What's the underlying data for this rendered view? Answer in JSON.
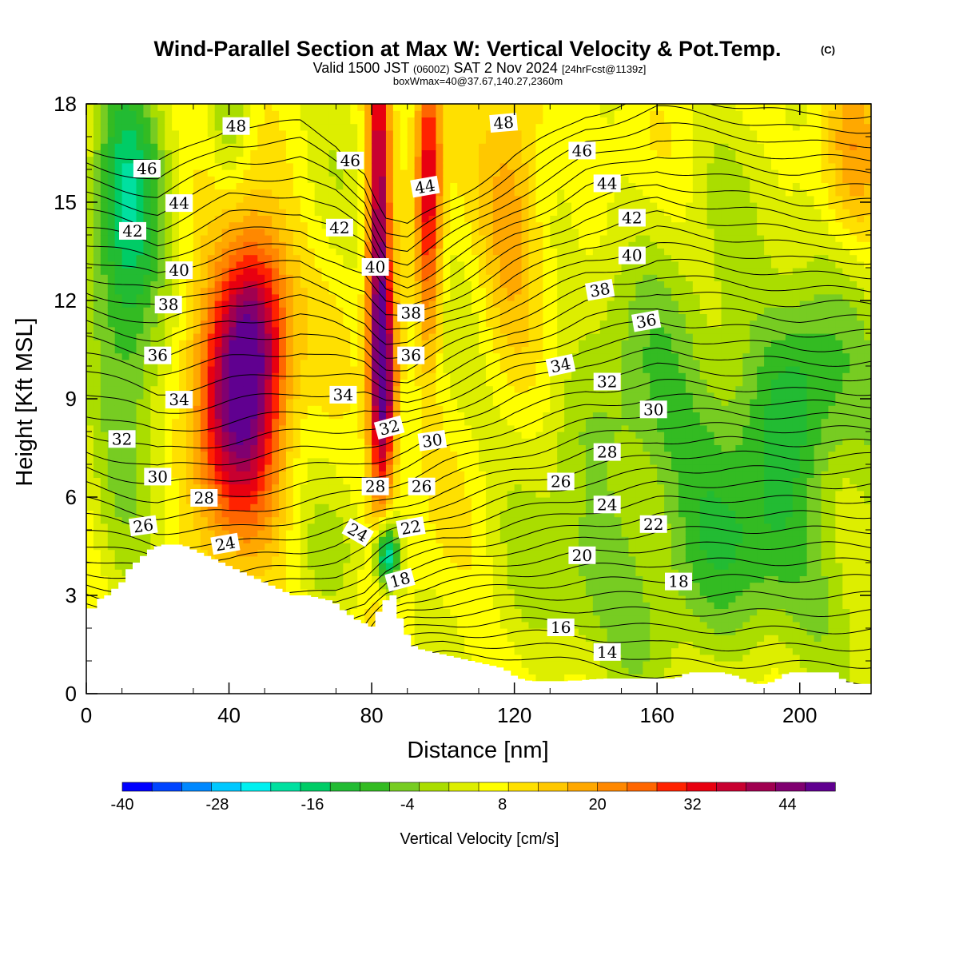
{
  "chart_data": {
    "type": "heatmap",
    "title": "Wind-Parallel Section at Max W: Vertical Velocity & Pot.Temp.",
    "title_badge": "(C)",
    "subtitle_line1_parts": [
      "Valid 1500 JST ",
      "(0600Z)",
      " SAT 2 Nov 2024 ",
      "[24hrFcst@1139z]"
    ],
    "subtitle_line2": "boxWmax=40@37.67,140.27,2360m",
    "xlabel": "Distance [nm]",
    "ylabel": "Height [Kft MSL]",
    "xlim": [
      0,
      220
    ],
    "ylim": [
      0,
      18
    ],
    "x_ticks": [
      0,
      40,
      80,
      120,
      160,
      200
    ],
    "x_tick_labels": [
      "0",
      "40",
      "80",
      "120",
      "160",
      "200"
    ],
    "y_ticks": [
      0,
      3,
      6,
      9,
      12,
      15,
      18
    ],
    "y_tick_labels": [
      "0",
      "3",
      "6",
      "9",
      "12",
      "15",
      "18"
    ],
    "colorbar": {
      "title": "Vertical Velocity [cm/s]",
      "range": [
        -40,
        50
      ],
      "tick_values": [
        -40,
        -28,
        -16,
        -4,
        8,
        20,
        32,
        44
      ],
      "tick_labels": [
        "-40",
        "-28",
        "-16",
        "-4",
        "8",
        "20",
        "32",
        "44"
      ],
      "colors": [
        "#0000ff",
        "#0044ff",
        "#0088ff",
        "#00c8ff",
        "#00f0f0",
        "#00e0a0",
        "#00cc66",
        "#22bb33",
        "#33bb22",
        "#77cc22",
        "#aadd00",
        "#ddee00",
        "#ffff00",
        "#ffe000",
        "#ffc800",
        "#ffa800",
        "#ff8800",
        "#ff6600",
        "#ff2200",
        "#e80010",
        "#c80030",
        "#a00050",
        "#800070",
        "#600090"
      ]
    },
    "w_features": [
      {
        "x": 12,
        "z": 12.0,
        "w": -18,
        "sx": 10,
        "sz": 5.5
      },
      {
        "x": 10,
        "z": 16.0,
        "w": -10,
        "sx": 9,
        "sz": 3.5
      },
      {
        "x": 42,
        "z": 8.8,
        "w": 38,
        "sx": 12,
        "sz": 3.8
      },
      {
        "x": 48,
        "z": 11.5,
        "w": 24,
        "sx": 9,
        "sz": 3
      },
      {
        "x": 82,
        "z": 14.0,
        "w": 36,
        "sx": 3.2,
        "sz": 8
      },
      {
        "x": 84,
        "z": 9.5,
        "w": 28,
        "sx": 3.5,
        "sz": 3
      },
      {
        "x": 96,
        "z": 15.5,
        "w": 28,
        "sx": 3.5,
        "sz": 5
      },
      {
        "x": 84,
        "z": 4.2,
        "w": -32,
        "sx": 3.5,
        "sz": 1.1
      },
      {
        "x": 120,
        "z": 15.0,
        "w": 14,
        "sx": 9,
        "sz": 4
      },
      {
        "x": 170,
        "z": 8.0,
        "w": -6,
        "sx": 30,
        "sz": 6
      },
      {
        "x": 200,
        "z": 9.5,
        "w": -10,
        "sx": 12,
        "sz": 3
      },
      {
        "x": 190,
        "z": 4.0,
        "w": -8,
        "sx": 25,
        "sz": 3
      },
      {
        "x": 140,
        "z": 3.0,
        "w": -6,
        "sx": 20,
        "sz": 2.5
      },
      {
        "x": 40,
        "z": 17.5,
        "w": -8,
        "sx": 5,
        "sz": 2
      },
      {
        "x": 68,
        "z": 4.2,
        "w": -4,
        "sx": 8,
        "sz": 1.5
      },
      {
        "x": 215,
        "z": 16.5,
        "w": 10,
        "sx": 8,
        "sz": 3
      }
    ],
    "terrain": {
      "x": [
        0,
        3,
        5,
        7,
        9,
        11,
        13,
        15,
        17,
        19,
        21,
        23,
        25,
        27,
        29,
        31,
        33,
        35,
        37,
        39,
        41,
        43,
        45,
        47,
        49,
        51,
        53,
        55,
        57,
        59,
        61,
        63,
        65,
        67,
        69,
        71,
        73,
        75,
        77,
        79,
        81,
        83,
        85,
        87,
        89,
        91,
        93,
        95,
        97,
        99,
        101,
        103,
        105,
        107,
        109,
        111,
        113,
        115,
        117,
        119,
        121,
        123,
        125,
        127,
        129,
        131,
        133,
        135,
        137,
        139,
        141,
        143,
        145,
        147,
        149,
        151,
        153,
        155,
        157,
        159,
        161,
        163,
        165,
        167,
        169,
        171,
        173,
        175,
        177,
        179,
        181,
        183,
        185,
        187,
        189,
        191,
        193,
        195,
        197,
        199,
        201,
        203,
        205,
        207,
        209,
        211,
        213,
        215,
        217,
        220
      ],
      "z": [
        2.6,
        2.9,
        3.0,
        3.2,
        3.4,
        3.8,
        4.0,
        4.2,
        4.4,
        4.5,
        4.55,
        4.55,
        4.55,
        4.5,
        4.4,
        4.3,
        4.2,
        4.1,
        4.0,
        3.9,
        3.8,
        3.7,
        3.6,
        3.5,
        3.4,
        3.3,
        3.2,
        3.1,
        3.0,
        3.0,
        3.0,
        2.95,
        2.9,
        2.85,
        2.75,
        2.55,
        2.4,
        2.25,
        2.15,
        2.05,
        2.5,
        2.85,
        3.0,
        2.3,
        1.8,
        1.45,
        1.35,
        1.3,
        1.25,
        1.2,
        1.15,
        1.1,
        1.05,
        1.0,
        0.95,
        0.9,
        0.85,
        0.8,
        0.7,
        0.55,
        0.45,
        0.4,
        0.38,
        0.38,
        0.38,
        0.38,
        0.38,
        0.4,
        0.4,
        0.42,
        0.44,
        0.45,
        0.46,
        0.46,
        0.46,
        0.46,
        0.46,
        0.46,
        0.46,
        0.46,
        0.46,
        0.46,
        0.5,
        0.6,
        0.65,
        0.65,
        0.65,
        0.65,
        0.65,
        0.6,
        0.55,
        0.45,
        0.35,
        0.3,
        0.3,
        0.35,
        0.45,
        0.6,
        0.65,
        0.65,
        0.65,
        0.65,
        0.65,
        0.65,
        0.65,
        0.45,
        0.35,
        0.3,
        0.3,
        0.3
      ]
    },
    "isentropes": {
      "theta_values": [
        12,
        13,
        14,
        15,
        16,
        17,
        18,
        19,
        20,
        21,
        22,
        23,
        24,
        25,
        26,
        27,
        28,
        29,
        30,
        31,
        32,
        33,
        34,
        35,
        36,
        37,
        38,
        39,
        40,
        41,
        42,
        43,
        44,
        45,
        46,
        47,
        48,
        49,
        50
      ],
      "x_nodes": [
        0,
        20,
        40,
        60,
        70,
        78,
        84,
        90,
        100,
        120,
        140,
        160,
        180,
        200,
        220
      ],
      "theta_at_3kft": [
        22,
        23,
        23.5,
        23,
        22.5,
        21.5,
        19.5,
        18.5,
        17.8,
        17.2,
        17,
        17,
        17,
        17,
        17
      ],
      "lapse_low": [
        2.8,
        2.8,
        2.4,
        2.3,
        2.3,
        2.5,
        3.2,
        3.4,
        3.2,
        2.8,
        2.4,
        2.0,
        1.9,
        1.9,
        1.9
      ],
      "lapse_high": [
        1.3,
        1.3,
        1.3,
        1.45,
        1.7,
        1.9,
        2.1,
        2.2,
        2.2,
        2.1,
        2.1,
        2.3,
        2.5,
        2.6,
        2.6
      ]
    },
    "contour_labels": [
      {
        "text": "48",
        "x": 42,
        "z": 17.3,
        "angle": 0
      },
      {
        "text": "46",
        "x": 17,
        "z": 16.0,
        "angle": 0
      },
      {
        "text": "44",
        "x": 26,
        "z": 14.95,
        "angle": 0
      },
      {
        "text": "42",
        "x": 13,
        "z": 14.1,
        "angle": 0
      },
      {
        "text": "40",
        "x": 26,
        "z": 12.9,
        "angle": 0
      },
      {
        "text": "38",
        "x": 23,
        "z": 11.85,
        "angle": 0
      },
      {
        "text": "36",
        "x": 20,
        "z": 10.3,
        "angle": 0
      },
      {
        "text": "34",
        "x": 26,
        "z": 8.95,
        "angle": 0
      },
      {
        "text": "32",
        "x": 10,
        "z": 7.75,
        "angle": 0
      },
      {
        "text": "30",
        "x": 20,
        "z": 6.6,
        "angle": 0
      },
      {
        "text": "28",
        "x": 33,
        "z": 5.95,
        "angle": 0
      },
      {
        "text": "26",
        "x": 16,
        "z": 5.1,
        "angle": -8
      },
      {
        "text": "24",
        "x": 39,
        "z": 4.55,
        "angle": -10
      },
      {
        "text": "46",
        "x": 74,
        "z": 16.25,
        "angle": 0
      },
      {
        "text": "42",
        "x": 71,
        "z": 14.2,
        "angle": 0
      },
      {
        "text": "40",
        "x": 81,
        "z": 13.0,
        "angle": 0
      },
      {
        "text": "34",
        "x": 72,
        "z": 9.1,
        "angle": 0
      },
      {
        "text": "32",
        "x": 85,
        "z": 8.1,
        "angle": -15
      },
      {
        "text": "28",
        "x": 81,
        "z": 6.3,
        "angle": 0
      },
      {
        "text": "24",
        "x": 76,
        "z": 4.9,
        "angle": 30
      },
      {
        "text": "44",
        "x": 95,
        "z": 15.45,
        "angle": -10
      },
      {
        "text": "38",
        "x": 91,
        "z": 11.6,
        "angle": 0
      },
      {
        "text": "36",
        "x": 91,
        "z": 10.3,
        "angle": 0
      },
      {
        "text": "30",
        "x": 97,
        "z": 7.7,
        "angle": -8
      },
      {
        "text": "26",
        "x": 94,
        "z": 6.3,
        "angle": 0
      },
      {
        "text": "22",
        "x": 91,
        "z": 5.05,
        "angle": -10
      },
      {
        "text": "18",
        "x": 88,
        "z": 3.45,
        "angle": -15
      },
      {
        "text": "48",
        "x": 117,
        "z": 17.4,
        "angle": -5
      },
      {
        "text": "46",
        "x": 139,
        "z": 16.55,
        "angle": 0
      },
      {
        "text": "44",
        "x": 146,
        "z": 15.55,
        "angle": 0
      },
      {
        "text": "42",
        "x": 153,
        "z": 14.5,
        "angle": 0
      },
      {
        "text": "40",
        "x": 153,
        "z": 13.35,
        "angle": 0
      },
      {
        "text": "38",
        "x": 144,
        "z": 12.3,
        "angle": -10
      },
      {
        "text": "36",
        "x": 157,
        "z": 11.35,
        "angle": -10
      },
      {
        "text": "34",
        "x": 133,
        "z": 10.0,
        "angle": -12
      },
      {
        "text": "32",
        "x": 146,
        "z": 9.5,
        "angle": 0
      },
      {
        "text": "30",
        "x": 159,
        "z": 8.65,
        "angle": 0
      },
      {
        "text": "28",
        "x": 146,
        "z": 7.35,
        "angle": 0
      },
      {
        "text": "26",
        "x": 133,
        "z": 6.45,
        "angle": 0
      },
      {
        "text": "24",
        "x": 146,
        "z": 5.75,
        "angle": 0
      },
      {
        "text": "22",
        "x": 159,
        "z": 5.15,
        "angle": 0
      },
      {
        "text": "20",
        "x": 139,
        "z": 4.2,
        "angle": 0
      },
      {
        "text": "18",
        "x": 166,
        "z": 3.4,
        "angle": 0
      },
      {
        "text": "16",
        "x": 133,
        "z": 2.0,
        "angle": 0
      },
      {
        "text": "14",
        "x": 146,
        "z": 1.25,
        "angle": 0
      }
    ]
  }
}
